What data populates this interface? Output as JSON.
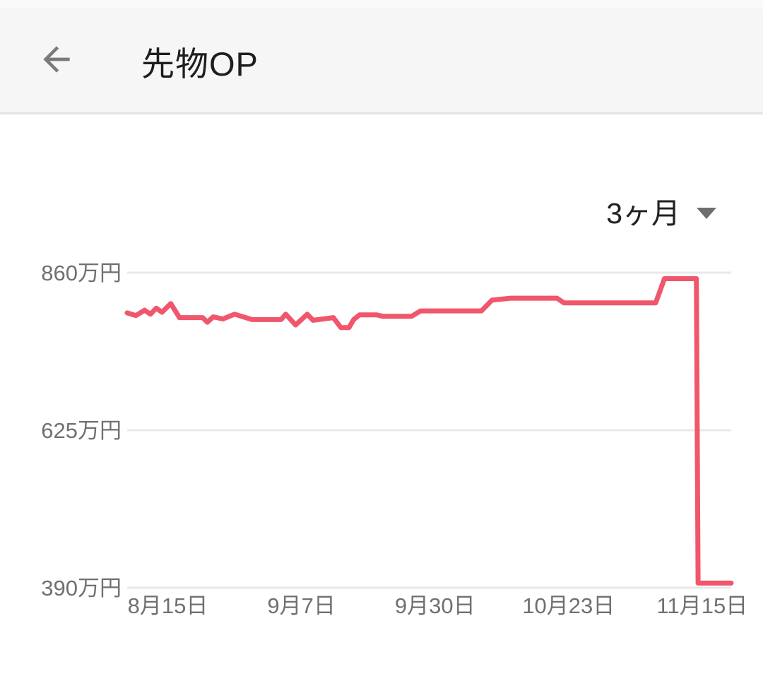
{
  "header": {
    "title": "先物OP",
    "back_icon": "arrow-left-icon"
  },
  "period_selector": {
    "value": "3ヶ月",
    "icon": "chevron-down-icon"
  },
  "colors": {
    "line": "#F0566C",
    "grid": "#E8E8E8",
    "axis_text": "#707070",
    "header_bg": "#F6F6F6",
    "header_border": "#E3E3E3",
    "title_text": "#1E1E1E",
    "icon_gray": "#7B7B7B"
  },
  "chart_data": {
    "type": "line",
    "title": "",
    "unit": "万円",
    "grid": true,
    "legend": false,
    "ylim": [
      390,
      860
    ],
    "y_axis": {
      "ticks": [
        {
          "label": "860万円",
          "value": 860
        },
        {
          "label": "625万円",
          "value": 625
        },
        {
          "label": "390万円",
          "value": 390
        }
      ]
    },
    "x_axis": {
      "domain_days": [
        0,
        104
      ],
      "ticks": [
        {
          "label": "8月15日",
          "day": 7
        },
        {
          "label": "9月7日",
          "day": 30
        },
        {
          "label": "9月30日",
          "day": 53
        },
        {
          "label": "10月23日",
          "day": 76
        },
        {
          "label": "11月15日",
          "day": 99
        }
      ]
    },
    "series": [
      {
        "color": "#F0566C",
        "points": [
          [
            0,
            800
          ],
          [
            1.5,
            796
          ],
          [
            3,
            804
          ],
          [
            4,
            798
          ],
          [
            5,
            807
          ],
          [
            6,
            801
          ],
          [
            7.5,
            814
          ],
          [
            9,
            793
          ],
          [
            13,
            793
          ],
          [
            13.8,
            786
          ],
          [
            14.8,
            794
          ],
          [
            16.5,
            791
          ],
          [
            18.5,
            798
          ],
          [
            21.5,
            790
          ],
          [
            26.5,
            790
          ],
          [
            27.3,
            798
          ],
          [
            29,
            782
          ],
          [
            31,
            798
          ],
          [
            32,
            789
          ],
          [
            35.5,
            793
          ],
          [
            36.8,
            778
          ],
          [
            38.2,
            778
          ],
          [
            39,
            790
          ],
          [
            40,
            797
          ],
          [
            43,
            797
          ],
          [
            44,
            795
          ],
          [
            49,
            795
          ],
          [
            50.5,
            803
          ],
          [
            61,
            803
          ],
          [
            62.8,
            819
          ],
          [
            66,
            822
          ],
          [
            74,
            822
          ],
          [
            75.2,
            815
          ],
          [
            91,
            815
          ],
          [
            92.5,
            851
          ],
          [
            98,
            851
          ],
          [
            98.3,
            397
          ],
          [
            104,
            397
          ]
        ]
      }
    ]
  }
}
